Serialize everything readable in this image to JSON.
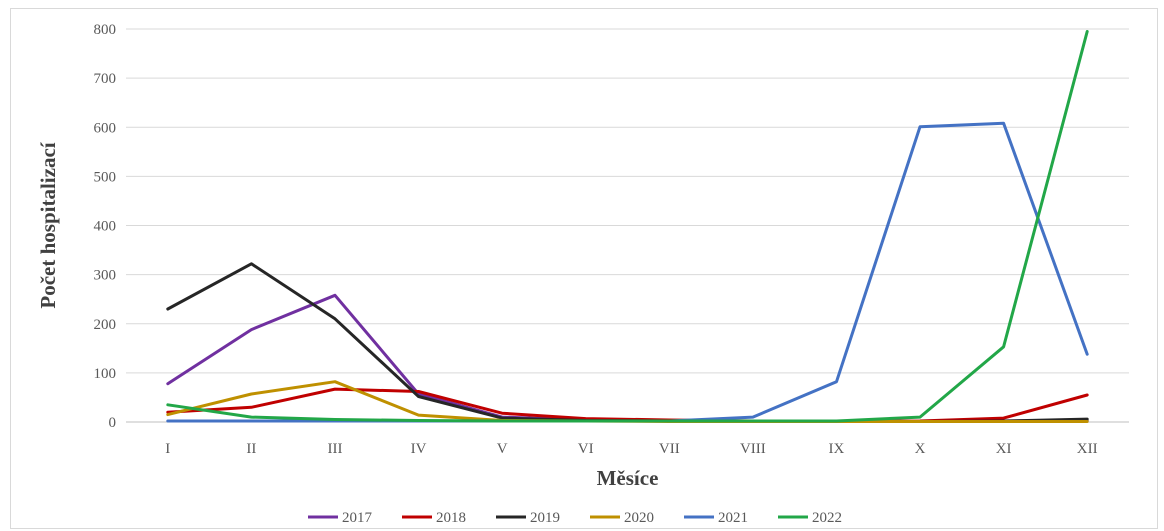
{
  "chart_data": {
    "type": "line",
    "xlabel": "Měsíce",
    "ylabel": "Počet hospitalizací",
    "categories": [
      "I",
      "II",
      "III",
      "IV",
      "V",
      "VI",
      "VII",
      "VIII",
      "IX",
      "X",
      "XI",
      "XII"
    ],
    "ylim": [
      0,
      800
    ],
    "yticks": [
      0,
      100,
      200,
      300,
      400,
      500,
      600,
      700,
      800
    ],
    "grid": true,
    "legend_position": "bottom",
    "series": [
      {
        "name": "2017",
        "color": "#7030a0",
        "values": [
          78,
          188,
          258,
          57,
          10,
          4,
          2,
          2,
          1,
          1,
          2,
          3
        ]
      },
      {
        "name": "2018",
        "color": "#c00000",
        "values": [
          20,
          30,
          67,
          62,
          18,
          7,
          4,
          2,
          1,
          2,
          8,
          55
        ]
      },
      {
        "name": "2019",
        "color": "#262626",
        "values": [
          230,
          322,
          210,
          52,
          8,
          3,
          2,
          2,
          1,
          1,
          2,
          6
        ]
      },
      {
        "name": "2020",
        "color": "#bf9000",
        "values": [
          15,
          57,
          82,
          14,
          3,
          2,
          1,
          1,
          1,
          1,
          1,
          1
        ]
      },
      {
        "name": "2021",
        "color": "#4472c4",
        "values": [
          2,
          2,
          2,
          2,
          2,
          2,
          2,
          10,
          82,
          601,
          608,
          138
        ]
      },
      {
        "name": "2022",
        "color": "#22a748",
        "values": [
          35,
          10,
          5,
          3,
          2,
          2,
          2,
          2,
          2,
          10,
          153,
          795
        ]
      }
    ]
  }
}
